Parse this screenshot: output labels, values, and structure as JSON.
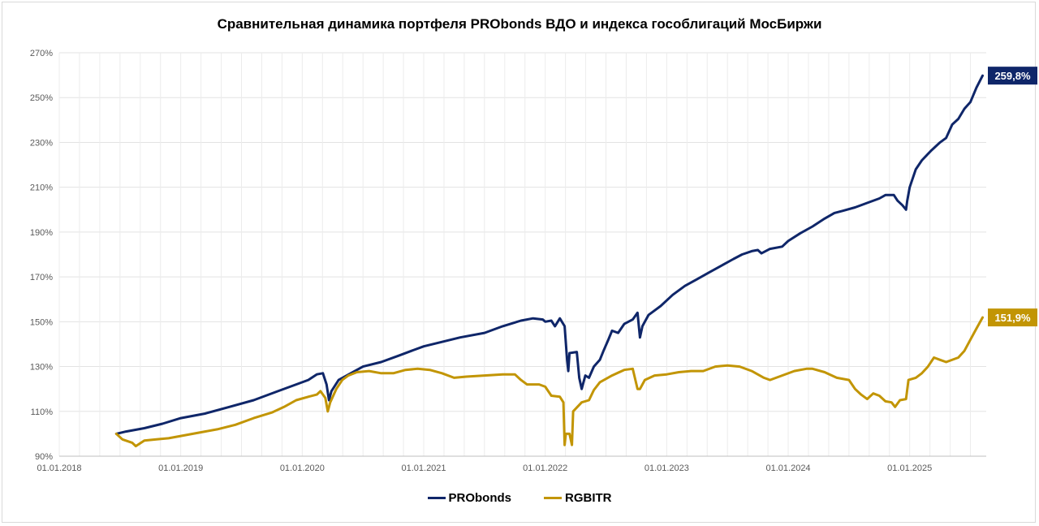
{
  "chart_data": {
    "type": "line",
    "title": "Сравнительная динамика портфеля PRObonds ВДО и индекса гособлигаций МосБиржи",
    "ylim": [
      0.9,
      2.7
    ],
    "y_ticks": [
      "90%",
      "110%",
      "130%",
      "150%",
      "170%",
      "190%",
      "210%",
      "230%",
      "250%",
      "270%"
    ],
    "y_tick_values": [
      0.9,
      1.1,
      1.3,
      1.5,
      1.7,
      1.9,
      2.1,
      2.3,
      2.5,
      2.7
    ],
    "x_ticks": [
      "01.01.2018",
      "01.01.2019",
      "01.01.2020",
      "01.01.2021",
      "01.01.2022",
      "01.01.2023",
      "01.01.2024",
      "01.01.2025"
    ],
    "x_tick_values": [
      2018.0,
      2019.0,
      2020.0,
      2021.0,
      2022.0,
      2023.0,
      2024.0,
      2025.0
    ],
    "xlim": [
      2018.0,
      2025.63
    ],
    "grid": true,
    "legend_position": "bottom",
    "series": [
      {
        "name": "PRObonds",
        "color": "#0f2669",
        "end_label": "259,8%",
        "points": [
          [
            2018.47,
            1.0
          ],
          [
            2018.55,
            1.01
          ],
          [
            2018.7,
            1.025
          ],
          [
            2018.85,
            1.045
          ],
          [
            2019.0,
            1.07
          ],
          [
            2019.2,
            1.09
          ],
          [
            2019.4,
            1.12
          ],
          [
            2019.6,
            1.15
          ],
          [
            2019.8,
            1.19
          ],
          [
            2019.95,
            1.22
          ],
          [
            2020.05,
            1.24
          ],
          [
            2020.12,
            1.265
          ],
          [
            2020.17,
            1.27
          ],
          [
            2020.2,
            1.22
          ],
          [
            2020.22,
            1.15
          ],
          [
            2020.24,
            1.19
          ],
          [
            2020.3,
            1.24
          ],
          [
            2020.4,
            1.27
          ],
          [
            2020.5,
            1.3
          ],
          [
            2020.65,
            1.32
          ],
          [
            2020.8,
            1.35
          ],
          [
            2020.9,
            1.37
          ],
          [
            2021.0,
            1.39
          ],
          [
            2021.15,
            1.41
          ],
          [
            2021.3,
            1.43
          ],
          [
            2021.5,
            1.45
          ],
          [
            2021.65,
            1.48
          ],
          [
            2021.8,
            1.505
          ],
          [
            2021.9,
            1.515
          ],
          [
            2021.98,
            1.51
          ],
          [
            2022.0,
            1.5
          ],
          [
            2022.05,
            1.505
          ],
          [
            2022.08,
            1.48
          ],
          [
            2022.12,
            1.515
          ],
          [
            2022.16,
            1.48
          ],
          [
            2022.18,
            1.33
          ],
          [
            2022.19,
            1.28
          ],
          [
            2022.2,
            1.36
          ],
          [
            2022.26,
            1.365
          ],
          [
            2022.28,
            1.25
          ],
          [
            2022.3,
            1.2
          ],
          [
            2022.33,
            1.26
          ],
          [
            2022.36,
            1.25
          ],
          [
            2022.4,
            1.3
          ],
          [
            2022.45,
            1.33
          ],
          [
            2022.48,
            1.37
          ],
          [
            2022.52,
            1.42
          ],
          [
            2022.55,
            1.46
          ],
          [
            2022.6,
            1.45
          ],
          [
            2022.65,
            1.49
          ],
          [
            2022.72,
            1.51
          ],
          [
            2022.76,
            1.54
          ],
          [
            2022.78,
            1.43
          ],
          [
            2022.8,
            1.48
          ],
          [
            2022.85,
            1.53
          ],
          [
            2022.95,
            1.57
          ],
          [
            2023.05,
            1.62
          ],
          [
            2023.15,
            1.66
          ],
          [
            2023.25,
            1.69
          ],
          [
            2023.35,
            1.72
          ],
          [
            2023.45,
            1.75
          ],
          [
            2023.55,
            1.78
          ],
          [
            2023.62,
            1.8
          ],
          [
            2023.7,
            1.815
          ],
          [
            2023.75,
            1.82
          ],
          [
            2023.78,
            1.805
          ],
          [
            2023.85,
            1.825
          ],
          [
            2023.95,
            1.835
          ],
          [
            2024.0,
            1.86
          ],
          [
            2024.1,
            1.895
          ],
          [
            2024.2,
            1.925
          ],
          [
            2024.3,
            1.96
          ],
          [
            2024.38,
            1.985
          ],
          [
            2024.45,
            1.995
          ],
          [
            2024.55,
            2.01
          ],
          [
            2024.65,
            2.03
          ],
          [
            2024.75,
            2.05
          ],
          [
            2024.8,
            2.065
          ],
          [
            2024.87,
            2.065
          ],
          [
            2024.9,
            2.04
          ],
          [
            2024.94,
            2.02
          ],
          [
            2024.97,
            2.0
          ],
          [
            2024.98,
            2.04
          ],
          [
            2025.0,
            2.1
          ],
          [
            2025.05,
            2.18
          ],
          [
            2025.1,
            2.22
          ],
          [
            2025.18,
            2.265
          ],
          [
            2025.25,
            2.3
          ],
          [
            2025.3,
            2.32
          ],
          [
            2025.35,
            2.38
          ],
          [
            2025.4,
            2.405
          ],
          [
            2025.45,
            2.45
          ],
          [
            2025.5,
            2.48
          ],
          [
            2025.55,
            2.545
          ],
          [
            2025.6,
            2.598
          ]
        ]
      },
      {
        "name": "RGBITR",
        "color": "#c29504",
        "end_label": "151,9%",
        "points": [
          [
            2018.47,
            1.0
          ],
          [
            2018.52,
            0.975
          ],
          [
            2018.6,
            0.96
          ],
          [
            2018.63,
            0.945
          ],
          [
            2018.7,
            0.97
          ],
          [
            2018.8,
            0.975
          ],
          [
            2018.9,
            0.98
          ],
          [
            2019.0,
            0.99
          ],
          [
            2019.1,
            1.0
          ],
          [
            2019.2,
            1.01
          ],
          [
            2019.3,
            1.02
          ],
          [
            2019.45,
            1.04
          ],
          [
            2019.6,
            1.07
          ],
          [
            2019.75,
            1.095
          ],
          [
            2019.85,
            1.12
          ],
          [
            2019.95,
            1.15
          ],
          [
            2020.05,
            1.165
          ],
          [
            2020.12,
            1.175
          ],
          [
            2020.15,
            1.19
          ],
          [
            2020.19,
            1.16
          ],
          [
            2020.21,
            1.1
          ],
          [
            2020.23,
            1.14
          ],
          [
            2020.28,
            1.2
          ],
          [
            2020.33,
            1.24
          ],
          [
            2020.38,
            1.26
          ],
          [
            2020.45,
            1.275
          ],
          [
            2020.55,
            1.28
          ],
          [
            2020.65,
            1.27
          ],
          [
            2020.75,
            1.27
          ],
          [
            2020.85,
            1.285
          ],
          [
            2020.95,
            1.29
          ],
          [
            2021.05,
            1.285
          ],
          [
            2021.15,
            1.27
          ],
          [
            2021.25,
            1.25
          ],
          [
            2021.35,
            1.255
          ],
          [
            2021.5,
            1.26
          ],
          [
            2021.65,
            1.265
          ],
          [
            2021.75,
            1.265
          ],
          [
            2021.8,
            1.24
          ],
          [
            2021.85,
            1.22
          ],
          [
            2021.95,
            1.22
          ],
          [
            2022.0,
            1.21
          ],
          [
            2022.05,
            1.17
          ],
          [
            2022.12,
            1.165
          ],
          [
            2022.15,
            1.14
          ],
          [
            2022.16,
            0.95
          ],
          [
            2022.17,
            1.0
          ],
          [
            2022.2,
            1.0
          ],
          [
            2022.22,
            0.95
          ],
          [
            2022.23,
            1.1
          ],
          [
            2022.3,
            1.14
          ],
          [
            2022.36,
            1.15
          ],
          [
            2022.4,
            1.195
          ],
          [
            2022.45,
            1.23
          ],
          [
            2022.55,
            1.26
          ],
          [
            2022.65,
            1.285
          ],
          [
            2022.72,
            1.29
          ],
          [
            2022.76,
            1.2
          ],
          [
            2022.78,
            1.2
          ],
          [
            2022.82,
            1.24
          ],
          [
            2022.9,
            1.26
          ],
          [
            2023.0,
            1.265
          ],
          [
            2023.1,
            1.275
          ],
          [
            2023.2,
            1.28
          ],
          [
            2023.3,
            1.28
          ],
          [
            2023.4,
            1.3
          ],
          [
            2023.5,
            1.305
          ],
          [
            2023.6,
            1.3
          ],
          [
            2023.7,
            1.28
          ],
          [
            2023.8,
            1.25
          ],
          [
            2023.85,
            1.24
          ],
          [
            2023.95,
            1.26
          ],
          [
            2024.05,
            1.28
          ],
          [
            2024.15,
            1.29
          ],
          [
            2024.2,
            1.29
          ],
          [
            2024.3,
            1.275
          ],
          [
            2024.4,
            1.25
          ],
          [
            2024.5,
            1.24
          ],
          [
            2024.55,
            1.2
          ],
          [
            2024.6,
            1.175
          ],
          [
            2024.65,
            1.155
          ],
          [
            2024.7,
            1.18
          ],
          [
            2024.75,
            1.17
          ],
          [
            2024.8,
            1.145
          ],
          [
            2024.85,
            1.14
          ],
          [
            2024.88,
            1.12
          ],
          [
            2024.92,
            1.15
          ],
          [
            2024.97,
            1.155
          ],
          [
            2024.99,
            1.24
          ],
          [
            2025.05,
            1.25
          ],
          [
            2025.1,
            1.27
          ],
          [
            2025.15,
            1.3
          ],
          [
            2025.2,
            1.34
          ],
          [
            2025.25,
            1.33
          ],
          [
            2025.3,
            1.32
          ],
          [
            2025.4,
            1.34
          ],
          [
            2025.45,
            1.37
          ],
          [
            2025.5,
            1.42
          ],
          [
            2025.55,
            1.47
          ],
          [
            2025.6,
            1.519
          ]
        ]
      }
    ]
  }
}
